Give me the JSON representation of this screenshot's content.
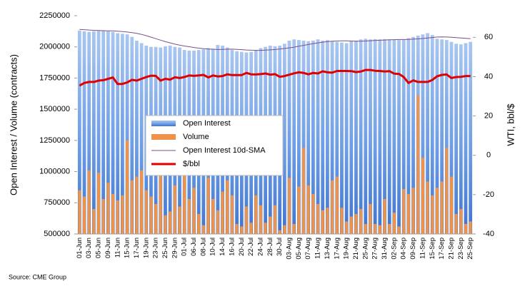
{
  "chart_data": {
    "type": "bar",
    "ylabel": "Open Interest / Volume (contracts)",
    "y2label": "WTI, bbl/$",
    "source": "Source: CME Group",
    "legend_position": "center",
    "ylim": [
      500000,
      2250000
    ],
    "yticks": [
      500000,
      750000,
      1000000,
      1250000,
      1500000,
      1750000,
      2000000,
      2250000
    ],
    "y2lim": [
      -40,
      71
    ],
    "y2ticks": [
      -40,
      -20,
      0,
      20,
      40,
      60
    ],
    "categories": [
      "01-Jun",
      null,
      "03-Jun",
      null,
      "05-Jun",
      null,
      "09-Jun",
      null,
      "11-Jun",
      null,
      "15-Jun",
      null,
      "17-Jun",
      null,
      "19-Jun",
      null,
      "23-Jun",
      null,
      "25-Jun",
      null,
      "29-Jun",
      null,
      "01-Jul",
      null,
      "06-Jul",
      null,
      "08-Jul",
      null,
      "10-Jul",
      null,
      "14-Jul",
      null,
      "16-Jul",
      null,
      "20-Jul",
      null,
      "22-Jul",
      null,
      "24-Jul",
      null,
      "28-Jul",
      null,
      "30-Jul",
      null,
      "03-Aug",
      null,
      "05-Aug",
      null,
      "07-Aug",
      null,
      "11-Aug",
      null,
      "13-Aug",
      null,
      "17-Aug",
      null,
      "19-Aug",
      null,
      "21-Aug",
      null,
      "25-Aug",
      null,
      "27-Aug",
      null,
      "31-Aug",
      null,
      "02-Sep",
      null,
      "04-Sep",
      null,
      "09-Sep",
      null,
      "11-Sep",
      null,
      "15-Sep",
      null,
      "17-Sep",
      null,
      "21-Sep",
      null,
      "23-Sep",
      null,
      "25-Sep"
    ],
    "series": [
      {
        "name": "Open Interest",
        "type": "bar",
        "color": "#5b8fde",
        "values": [
          2130000,
          2125000,
          2120000,
          2125000,
          2128000,
          2130000,
          2125000,
          2120000,
          2110000,
          2105000,
          2100000,
          2080000,
          2050000,
          2030000,
          2010000,
          2000000,
          2000000,
          1995000,
          2005000,
          2010000,
          2000000,
          1995000,
          1975000,
          1970000,
          1970000,
          1975000,
          1980000,
          1990000,
          1985000,
          2015000,
          2010000,
          1995000,
          1975000,
          1965000,
          1960000,
          1955000,
          1960000,
          1975000,
          1990000,
          2000000,
          2010000,
          2005000,
          2010000,
          2025000,
          2050000,
          2060000,
          2055000,
          2050000,
          2045000,
          2050000,
          2060000,
          2050000,
          2055000,
          2045000,
          2040000,
          2035000,
          2030000,
          2045000,
          2050000,
          2060000,
          2065000,
          2060000,
          2062000,
          2060000,
          2062000,
          2060000,
          2058000,
          2055000,
          2060000,
          2070000,
          2080000,
          2090000,
          2100000,
          2110000,
          2095000,
          2065000,
          2060000,
          2055000,
          2040000,
          2025000,
          2020000,
          2030000,
          2040000
        ]
      },
      {
        "name": "Volume",
        "type": "bar",
        "color": "#f0934a",
        "values": [
          850000,
          800000,
          1010000,
          700000,
          990000,
          780000,
          910000,
          820000,
          770000,
          810000,
          1250000,
          930000,
          960000,
          1010000,
          850000,
          800000,
          740000,
          1010000,
          650000,
          680000,
          890000,
          720000,
          1010000,
          780000,
          870000,
          660000,
          570000,
          950000,
          780000,
          690000,
          840000,
          930000,
          810000,
          580000,
          560000,
          720000,
          590000,
          810000,
          730000,
          590000,
          640000,
          730000,
          530000,
          570000,
          950000,
          580000,
          880000,
          1190000,
          890000,
          820000,
          740000,
          690000,
          710000,
          930000,
          960000,
          710000,
          600000,
          640000,
          660000,
          700000,
          580000,
          740000,
          580000,
          570000,
          780000,
          580000,
          670000,
          560000,
          860000,
          820000,
          870000,
          1610000,
          1110000,
          920000,
          810000,
          870000,
          920000,
          1190000,
          960000,
          660000,
          700000,
          580000,
          600000
        ]
      },
      {
        "name": "Open Interest 10d-SMA",
        "type": "line",
        "color": "#7d4f8c",
        "values": [
          2140000,
          2138000,
          2135000,
          2133000,
          2131000,
          2130000,
          2129000,
          2128000,
          2126000,
          2123000,
          2119000,
          2114000,
          2108000,
          2100000,
          2090000,
          2078000,
          2066000,
          2054000,
          2042000,
          2032000,
          2022000,
          2014000,
          2007000,
          2001000,
          1995000,
          1990000,
          1986000,
          1983000,
          1981000,
          1979000,
          1980000,
          1981000,
          1982000,
          1980000,
          1978000,
          1975000,
          1973000,
          1972000,
          1972000,
          1974000,
          1976000,
          1979000,
          1983000,
          1987000,
          1992000,
          1998000,
          2005000,
          2012000,
          2019000,
          2026000,
          2032000,
          2038000,
          2042000,
          2045000,
          2047000,
          2048000,
          2048000,
          2047000,
          2046000,
          2046000,
          2047000,
          2049000,
          2051000,
          2053000,
          2055000,
          2057000,
          2058000,
          2059000,
          2059000,
          2060000,
          2062000,
          2064000,
          2067000,
          2071000,
          2075000,
          2079000,
          2080000,
          2079000,
          2077000,
          2074000,
          2071000,
          2068000,
          2066000
        ]
      },
      {
        "name": "$/bbl",
        "type": "line",
        "axis": "y2",
        "color": "#e00000",
        "values": [
          35.4,
          36.8,
          37.3,
          37.3,
          38.0,
          38.2,
          38.9,
          39.6,
          36.3,
          36.3,
          37.1,
          38.4,
          38.0,
          38.9,
          39.8,
          40.5,
          40.4,
          38.0,
          38.9,
          38.5,
          39.7,
          39.3,
          39.8,
          40.6,
          40.4,
          40.6,
          40.9,
          39.6,
          40.6,
          40.1,
          40.3,
          41.2,
          40.8,
          40.8,
          40.8,
          41.9,
          41.2,
          41.1,
          41.3,
          41.6,
          41.0,
          41.3,
          39.9,
          40.3,
          41.0,
          41.7,
          42.2,
          41.9,
          41.2,
          41.9,
          41.6,
          42.7,
          42.2,
          42.0,
          42.9,
          42.9,
          42.9,
          42.8,
          42.3,
          42.6,
          43.4,
          43.4,
          43.0,
          42.9,
          42.6,
          42.8,
          41.5,
          41.4,
          39.8,
          36.8,
          38.1,
          37.3,
          37.3,
          37.3,
          38.3,
          40.2,
          40.9,
          41.1,
          39.3,
          39.8,
          39.9,
          40.3,
          40.3
        ]
      }
    ]
  }
}
